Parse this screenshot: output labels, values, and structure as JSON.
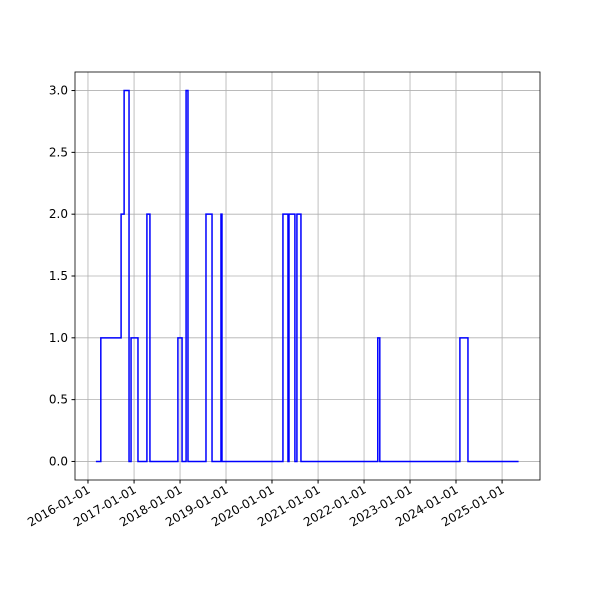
{
  "chart_data": {
    "type": "step",
    "x": [
      "2016-03-04",
      "2016-04-12",
      "2016-09-20",
      "2016-10-14",
      "2016-11-22",
      "2016-12-08",
      "2017-02-01",
      "2017-04-13",
      "2017-05-07",
      "2017-12-15",
      "2018-01-17",
      "2018-02-18",
      "2018-03-05",
      "2018-07-26",
      "2018-09-12",
      "2018-11-22",
      "2018-11-30",
      "2020-03-28",
      "2020-05-07",
      "2020-05-15",
      "2020-07-01",
      "2020-07-17",
      "2020-08-18",
      "2022-04-20",
      "2022-05-06",
      "2024-02-01",
      "2024-04-05",
      "2025-05-12"
    ],
    "values": [
      0,
      1,
      2,
      3,
      0,
      1,
      0,
      2,
      0,
      1,
      0,
      3,
      0,
      2,
      0,
      2,
      0,
      2,
      0,
      2,
      0,
      2,
      0,
      1,
      0,
      1,
      0,
      0
    ],
    "color": "#0000ff",
    "xlim": [
      "2015-09-20",
      "2025-10-29"
    ],
    "xticks": [
      "2016-01-01",
      "2017-01-01",
      "2018-01-01",
      "2019-01-01",
      "2020-01-01",
      "2021-01-01",
      "2022-01-01",
      "2023-01-01",
      "2024-01-01",
      "2025-01-01"
    ],
    "ylim": [
      -0.15,
      3.15
    ],
    "yticks": [
      {
        "value": 0,
        "label": "0.0"
      },
      {
        "value": 0.5,
        "label": "0.5"
      },
      {
        "value": 1,
        "label": "1.0"
      },
      {
        "value": 1.5,
        "label": "1.5"
      },
      {
        "value": 2,
        "label": "2.0"
      },
      {
        "value": 2.5,
        "label": "2.5"
      },
      {
        "value": 3,
        "label": "3.0"
      }
    ],
    "grid": true
  }
}
